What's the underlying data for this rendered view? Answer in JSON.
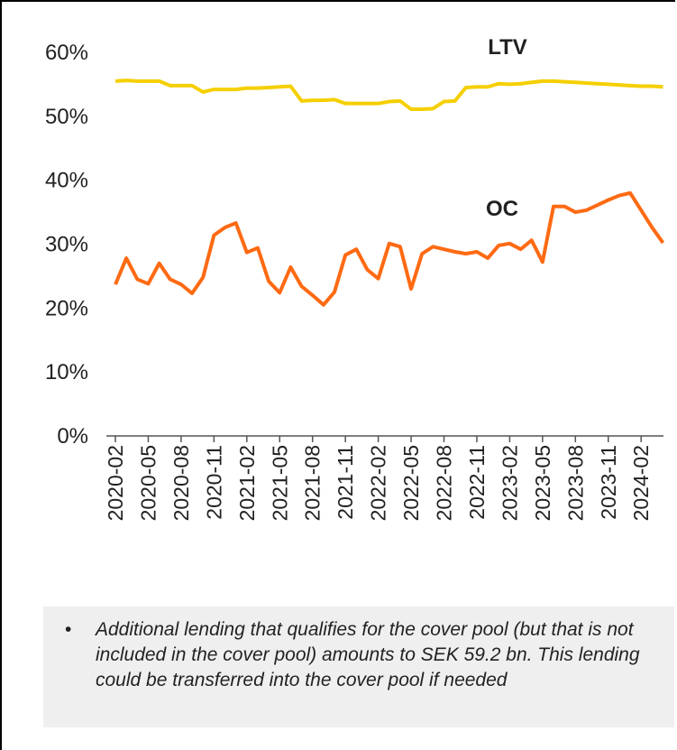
{
  "chart_data": {
    "type": "line",
    "categories": [
      "2020-02",
      null,
      null,
      "2020-05",
      null,
      null,
      "2020-08",
      null,
      null,
      "2020-11",
      null,
      null,
      "2021-02",
      null,
      null,
      "2021-05",
      null,
      null,
      "2021-08",
      null,
      null,
      "2021-11",
      null,
      null,
      "2022-02",
      null,
      null,
      "2022-05",
      null,
      null,
      "2022-08",
      null,
      null,
      "2022-11",
      null,
      null,
      "2023-02",
      null,
      null,
      "2023-05",
      null,
      null,
      "2023-08",
      null,
      null,
      "2023-11",
      null,
      null,
      "2024-02",
      null,
      null
    ],
    "series": [
      {
        "name": "LTV",
        "color": "#f5cf00",
        "values": [
          55.5,
          55.6,
          55.5,
          55.5,
          55.5,
          54.8,
          54.8,
          54.8,
          53.8,
          54.2,
          54.2,
          54.2,
          54.4,
          54.4,
          54.5,
          54.6,
          54.7,
          52.4,
          52.5,
          52.5,
          52.6,
          52.0,
          52.0,
          52.0,
          52.0,
          52.3,
          52.4,
          51.1,
          51.1,
          51.2,
          52.3,
          52.4,
          54.5,
          54.6,
          54.6,
          55.1,
          55.0,
          55.1,
          55.3,
          55.5,
          55.5,
          55.4,
          55.3,
          55.2,
          55.1,
          55.0,
          54.9,
          54.8,
          54.7,
          54.7,
          54.6
        ]
      },
      {
        "name": "OC",
        "color": "#ff6a13",
        "values": [
          23.7,
          27.8,
          24.5,
          23.8,
          27.0,
          24.5,
          23.7,
          22.3,
          24.8,
          31.4,
          32.6,
          33.3,
          28.7,
          29.4,
          24.2,
          22.4,
          26.4,
          23.4,
          22.0,
          20.5,
          22.5,
          28.3,
          29.2,
          26.0,
          24.6,
          30.1,
          29.6,
          23.0,
          28.5,
          29.6,
          29.2,
          28.8,
          28.5,
          28.8,
          27.8,
          29.8,
          30.1,
          29.2,
          30.6,
          27.2,
          35.9,
          35.9,
          35.0,
          35.3,
          36.1,
          36.9,
          37.6,
          38.0,
          35.3,
          32.6,
          30.2
        ]
      }
    ],
    "ylim": [
      0,
      60
    ],
    "yticks": [
      {
        "value": 0,
        "label": "0%"
      },
      {
        "value": 10,
        "label": "10%"
      },
      {
        "value": 20,
        "label": "20%"
      },
      {
        "value": 30,
        "label": "30%"
      },
      {
        "value": 40,
        "label": "40%"
      },
      {
        "value": 50,
        "label": "50%"
      },
      {
        "value": 60,
        "label": "60%"
      }
    ],
    "grid": false
  },
  "footnote": "Additional lending that qualifies for the cover pool (but that is not included in the cover pool) amounts to SEK 59.2 bn. This lending could be transferred into the cover pool if needed"
}
